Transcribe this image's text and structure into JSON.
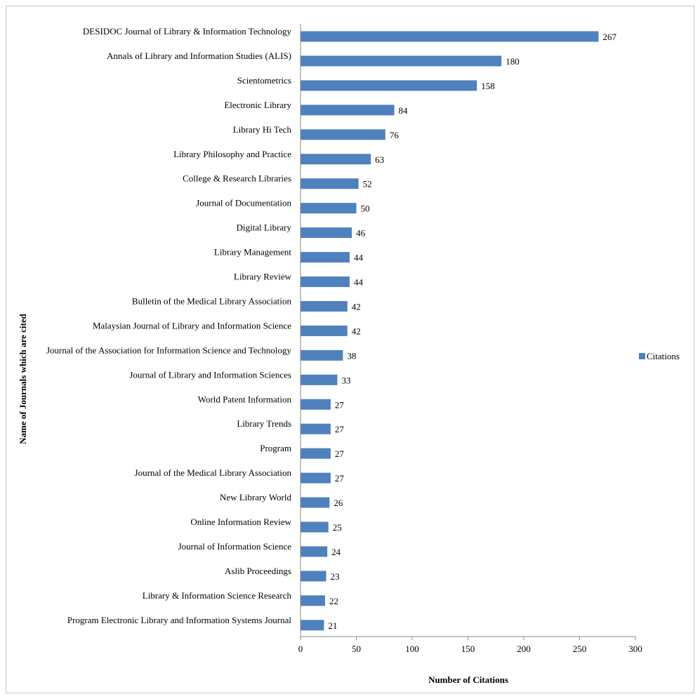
{
  "chart_data": {
    "type": "bar",
    "orientation": "horizontal",
    "title": "",
    "xlabel": "Number of Citations",
    "ylabel": "Name of Journals which are cited",
    "xlim": [
      0,
      300
    ],
    "xticks": [
      0,
      50,
      100,
      150,
      200,
      250,
      300
    ],
    "grid": false,
    "legend_position": "right",
    "bar_color": "#4f81bd",
    "categories": [
      "DESIDOC Journal of Library & Information Technology",
      "Annals of Library and Information Studies (ALIS)",
      "Scientometrics",
      "Electronic Library",
      "Library Hi Tech",
      "Library Philosophy and Practice",
      "College & Research  Libraries",
      "Journal of Documentation",
      "Digital Library",
      "Library Management",
      "Library Review",
      "Bulletin of the Medical Library Association",
      "Malaysian Journal of Library and Information Science",
      "Journal of the Association for Information Science and Technology",
      "Journal of Library and Information Sciences",
      "World Patent Information",
      "Library Trends",
      "Program",
      "Journal of the Medical Library Association",
      "New Library World",
      "Online Information Review",
      "Journal of Information Science",
      "Aslib Proceedings",
      "Library & Information Science Research",
      "Program Electronic Library and Information Systems Journal"
    ],
    "series": [
      {
        "name": "Citations",
        "values": [
          267,
          180,
          158,
          84,
          76,
          63,
          52,
          50,
          46,
          44,
          44,
          42,
          42,
          38,
          33,
          27,
          27,
          27,
          27,
          26,
          25,
          24,
          23,
          22,
          21
        ]
      }
    ]
  }
}
